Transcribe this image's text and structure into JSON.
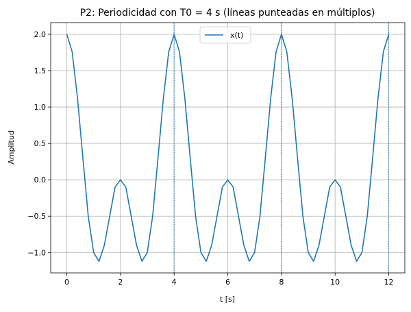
{
  "chart_data": {
    "type": "line",
    "title": "P2: Periodicidad con T0 = 4 s (líneas punteadas en múltiplos)",
    "xlabel": "t [s]",
    "ylabel": "Amplitud",
    "xlim": [
      -0.6,
      12.6
    ],
    "ylim": [
      -1.28,
      2.16
    ],
    "x_ticks": [
      0,
      2,
      4,
      6,
      8,
      10,
      12
    ],
    "x_tick_labels": [
      "0",
      "2",
      "4",
      "6",
      "8",
      "10",
      "12"
    ],
    "y_ticks": [
      -1.0,
      -0.5,
      0.0,
      0.5,
      1.0,
      1.5,
      2.0
    ],
    "y_tick_labels": [
      "−1.0",
      "−0.5",
      "0.0",
      "0.5",
      "1.0",
      "1.5",
      "2.0"
    ],
    "grid": true,
    "legend": {
      "position": "top-center",
      "entries": [
        "x(t)"
      ]
    },
    "series": [
      {
        "name": "x(t)",
        "color": "#1f77b4",
        "x": [
          0,
          0.2,
          0.4,
          0.6,
          0.8,
          1.0,
          1.2,
          1.4,
          1.6,
          1.8,
          2.0,
          2.2,
          2.4,
          2.6,
          2.8,
          3.0,
          3.2,
          3.4,
          3.6,
          3.8,
          4.0,
          4.2,
          4.4,
          4.6,
          4.8,
          5.0,
          5.2,
          5.4,
          5.6,
          5.8,
          6.0,
          6.2,
          6.4,
          6.6,
          6.8,
          7.0,
          7.2,
          7.4,
          7.6,
          7.8,
          8.0,
          8.2,
          8.4,
          8.6,
          8.8,
          9.0,
          9.2,
          9.4,
          9.6,
          9.8,
          10.0,
          10.2,
          10.4,
          10.6,
          10.8,
          11.0,
          11.2,
          11.4,
          11.6,
          11.8,
          12.0
        ],
        "y": [
          2.0,
          1.76,
          1.12,
          0.3,
          -0.5,
          -1.0,
          -1.12,
          -0.9,
          -0.5,
          -0.1,
          0.0,
          -0.1,
          -0.5,
          -0.9,
          -1.12,
          -1.0,
          -0.5,
          0.3,
          1.12,
          1.76,
          2.0,
          1.76,
          1.12,
          0.3,
          -0.5,
          -1.0,
          -1.12,
          -0.9,
          -0.5,
          -0.1,
          0.0,
          -0.1,
          -0.5,
          -0.9,
          -1.12,
          -1.0,
          -0.5,
          0.3,
          1.12,
          1.76,
          2.0,
          1.76,
          1.12,
          0.3,
          -0.5,
          -1.0,
          -1.12,
          -0.9,
          -0.5,
          -0.1,
          0.0,
          -0.1,
          -0.5,
          -0.9,
          -1.12,
          -1.0,
          -0.5,
          0.3,
          1.12,
          1.76,
          2.0
        ]
      }
    ],
    "vertical_lines": {
      "x": [
        4,
        8,
        12
      ],
      "style": "dotted",
      "color": "#1f77b4"
    }
  }
}
